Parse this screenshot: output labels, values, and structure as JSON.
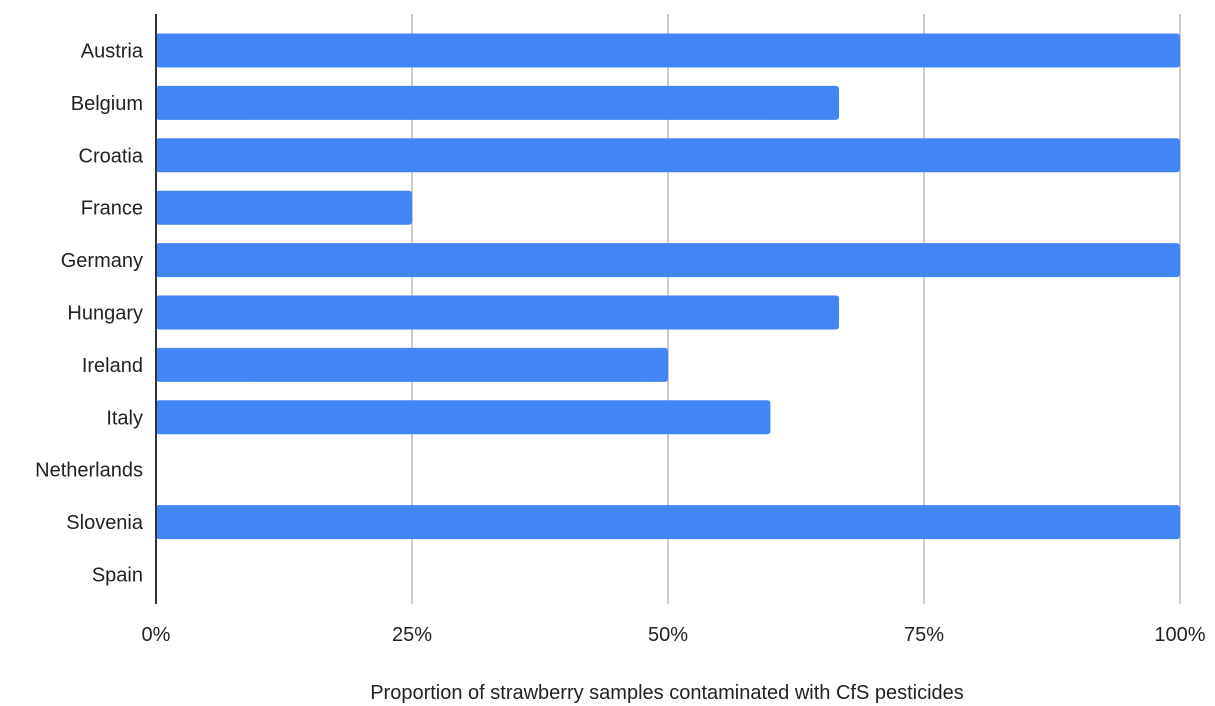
{
  "chart_data": {
    "type": "bar",
    "orientation": "horizontal",
    "categories": [
      "Austria",
      "Belgium",
      "Croatia",
      "France",
      "Germany",
      "Hungary",
      "Ireland",
      "Italy",
      "Netherlands",
      "Slovenia",
      "Spain"
    ],
    "series": [
      {
        "values": [
          1.0,
          0.667,
          1.0,
          0.25,
          1.0,
          0.667,
          0.5,
          0.6,
          0,
          1.0,
          0
        ]
      }
    ],
    "xlabel": "Proportion of strawberry samples contaminated with CfS pesticides",
    "ylabel": "",
    "xlim": [
      0,
      1
    ],
    "x_ticks": [
      {
        "value": 0,
        "label": "0%"
      },
      {
        "value": 0.25,
        "label": "25%"
      },
      {
        "value": 0.5,
        "label": "50%"
      },
      {
        "value": 0.75,
        "label": "75%"
      },
      {
        "value": 1.0,
        "label": "100%"
      }
    ],
    "grid": "vertical",
    "legend": "none",
    "colors": {
      "bar": "#4285f4",
      "grid": "#cccccc",
      "axis": "#333333",
      "text": "#222222"
    }
  }
}
